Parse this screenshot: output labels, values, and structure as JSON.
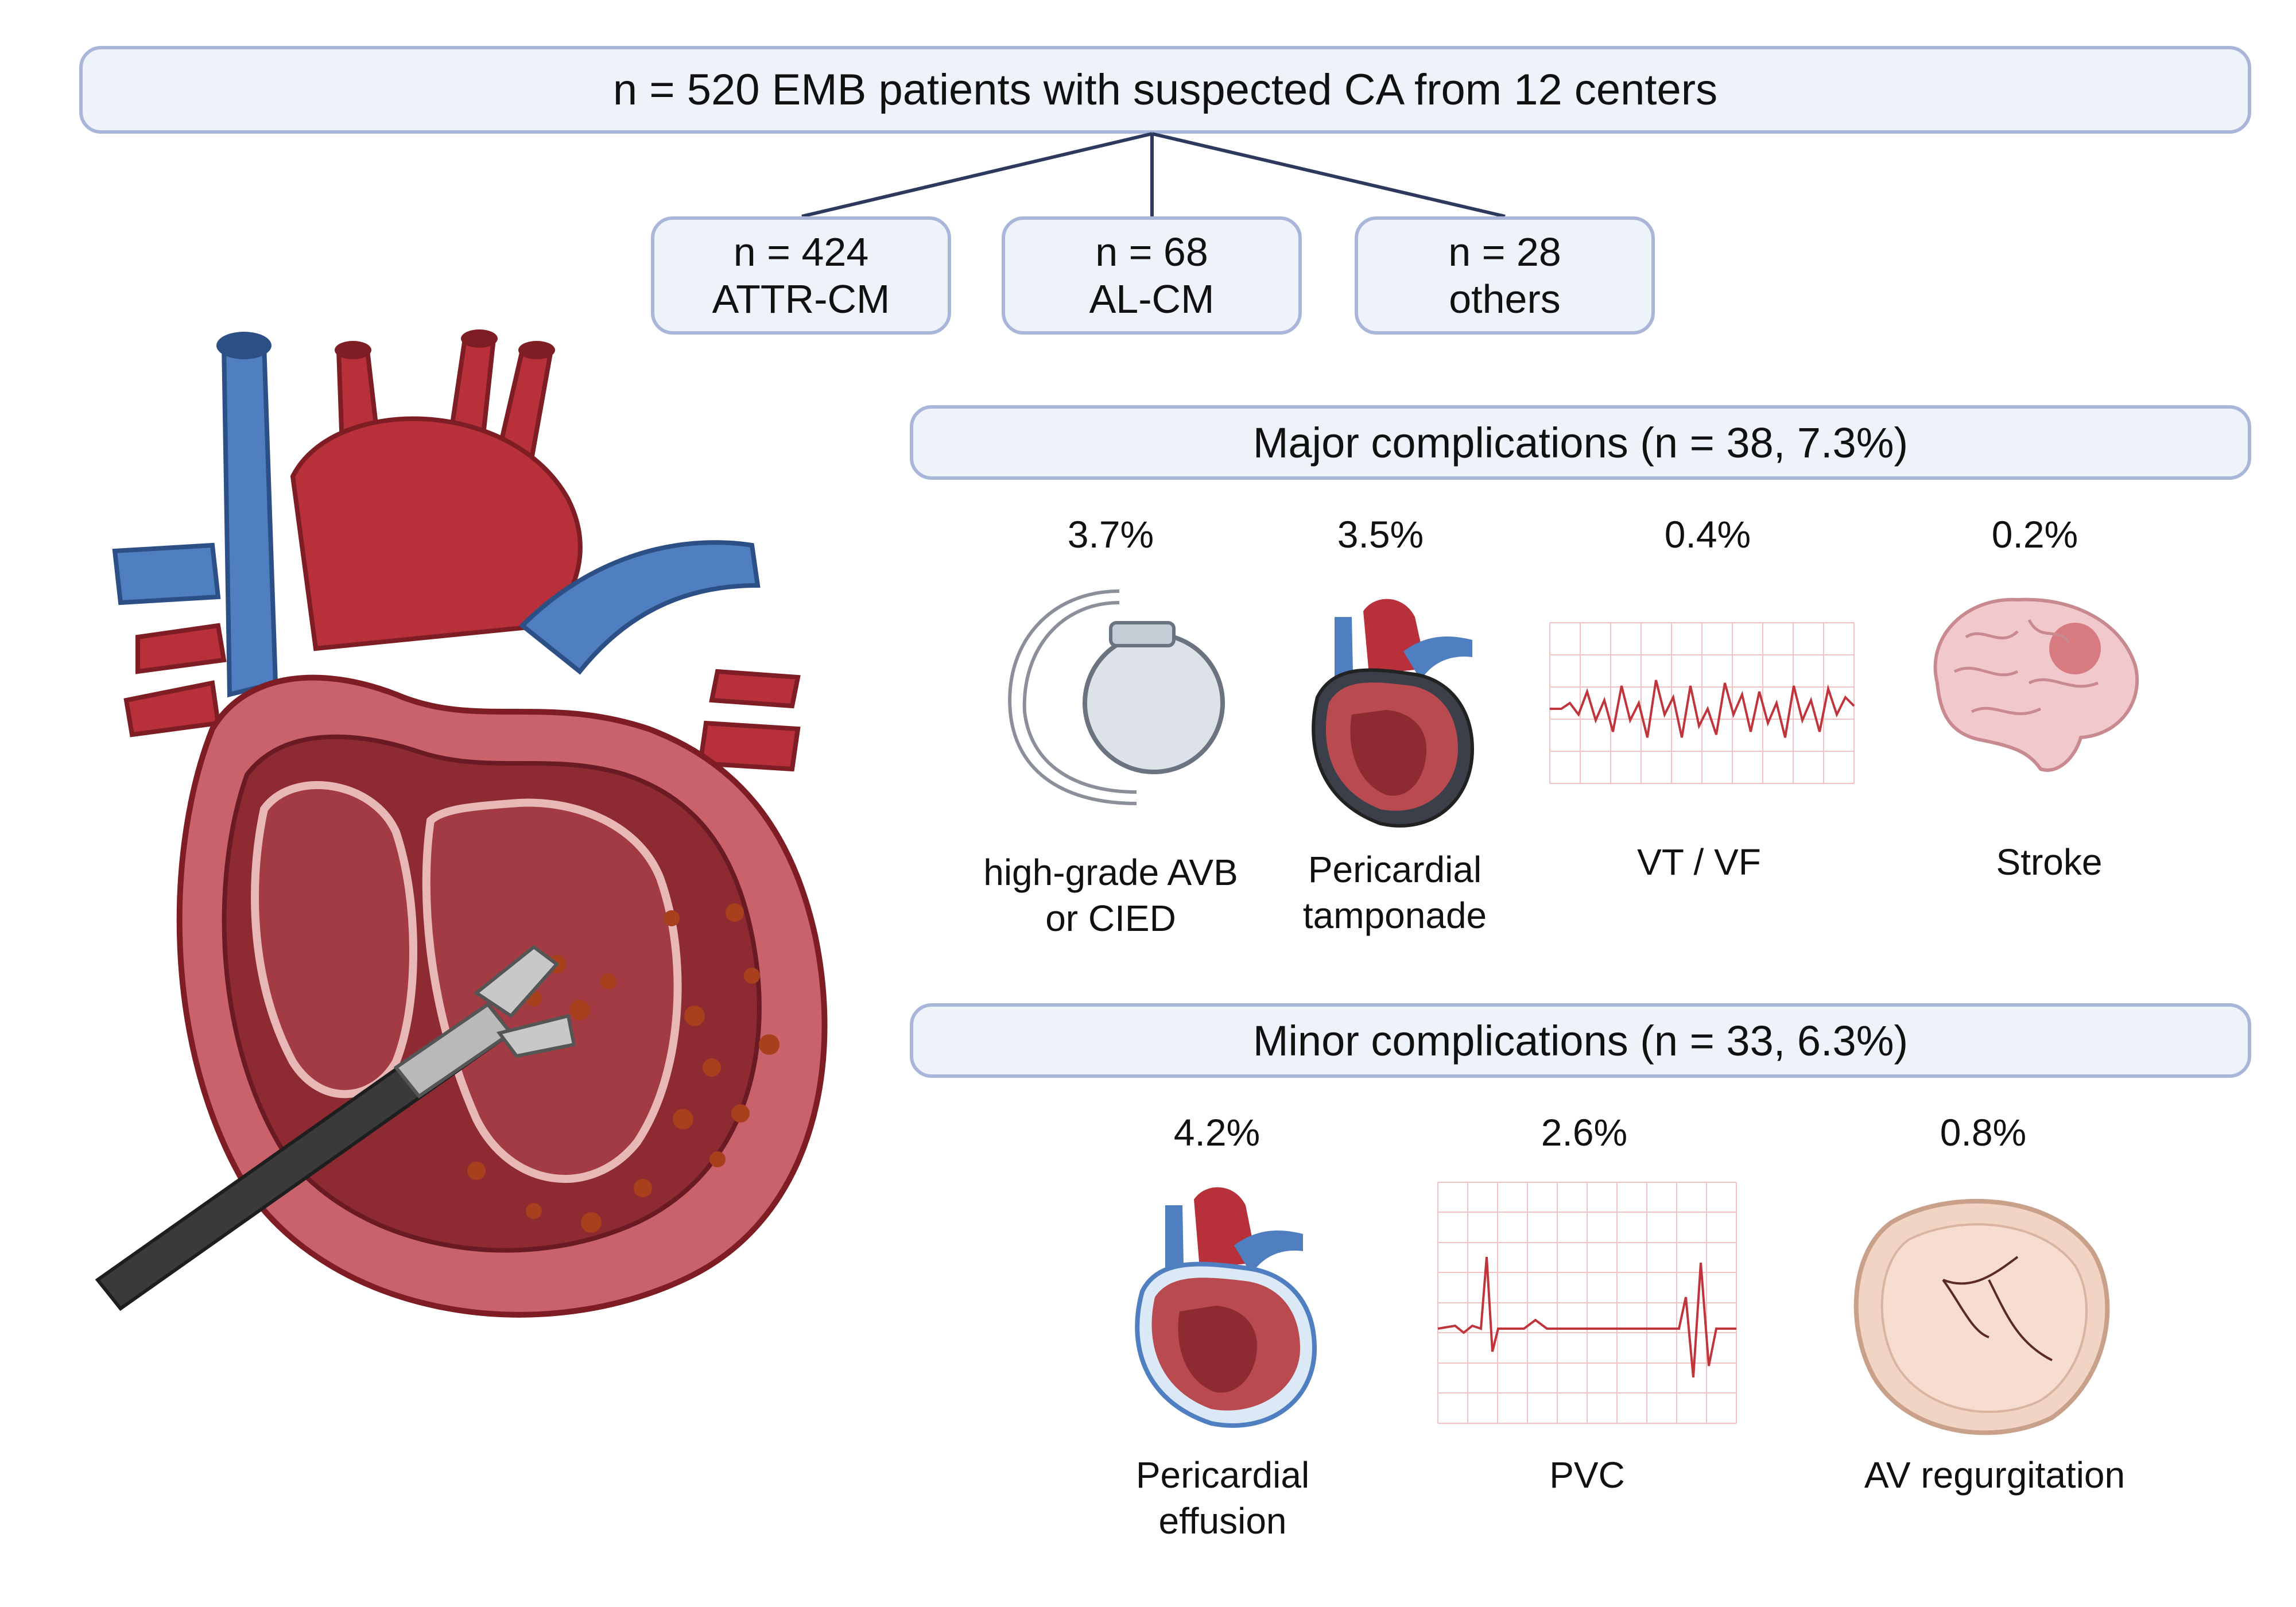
{
  "title": "n = 520 EMB patients with suspected CA from 12 centers",
  "groups": [
    {
      "n": "n = 424",
      "label": "ATTR-CM"
    },
    {
      "n": "n = 68",
      "label": "AL-CM"
    },
    {
      "n": "n = 28",
      "label": "others"
    }
  ],
  "major": {
    "header": "Major complications (n = 38, 7.3%)",
    "items": [
      {
        "pct": "3.7%",
        "label_line1": "high-grade AVB",
        "label_line2": "or CIED",
        "icon": "pacemaker-icon"
      },
      {
        "pct": "3.5%",
        "label_line1": "Pericardial",
        "label_line2": "tamponade",
        "icon": "heart-tamponade-icon"
      },
      {
        "pct": "0.4%",
        "label_line1": "VT / VF",
        "label_line2": "",
        "icon": "ecg-vt-vf-icon"
      },
      {
        "pct": "0.2%",
        "label_line1": "Stroke",
        "label_line2": "",
        "icon": "brain-icon"
      }
    ]
  },
  "minor": {
    "header": "Minor complications (n = 33, 6.3%)",
    "items": [
      {
        "pct": "4.2%",
        "label_line1": "Pericardial",
        "label_line2": "effusion",
        "icon": "heart-effusion-icon"
      },
      {
        "pct": "2.6%",
        "label_line1": "PVC",
        "label_line2": "",
        "icon": "ecg-pvc-icon"
      },
      {
        "pct": "0.8%",
        "label_line1": "AV regurgitation",
        "label_line2": "",
        "icon": "aortic-valve-icon"
      }
    ]
  },
  "colors": {
    "box_fill": "#eef2f9",
    "box_border": "#a9b6d9",
    "connector": "#2d3a5e",
    "artery_red": "#b8303a",
    "vein_blue": "#4f7fc0",
    "myocardium": "#9e3a3a",
    "ecg_red": "#c0343c",
    "ecg_grid": "#f2c2c2"
  }
}
